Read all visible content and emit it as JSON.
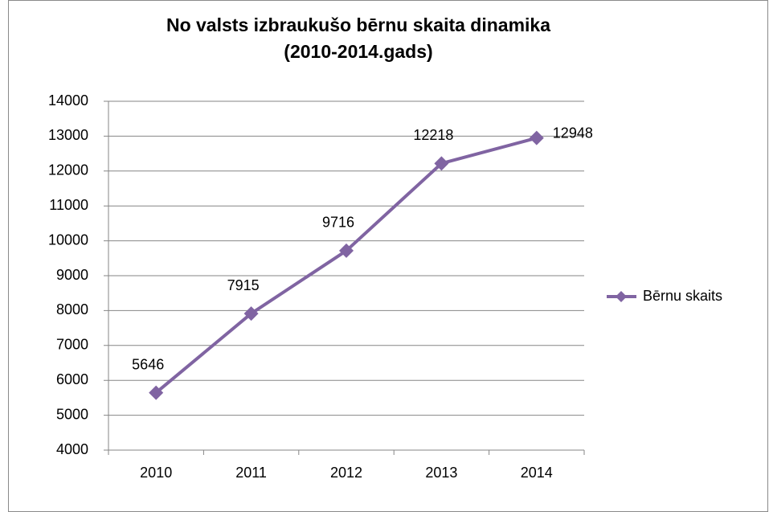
{
  "chart_data": {
    "type": "line",
    "title": [
      "No valsts izbraukušo bērnu skaita dinamika",
      "(2010-2014.gads)"
    ],
    "categories": [
      "2010",
      "2011",
      "2012",
      "2013",
      "2014"
    ],
    "series": [
      {
        "name": "Bērnu skaits",
        "color": "#8064a2",
        "values": [
          5646,
          7915,
          9716,
          12218,
          12948
        ]
      }
    ],
    "ylim": [
      4000,
      14000
    ],
    "yticks": [
      4000,
      5000,
      6000,
      7000,
      8000,
      9000,
      10000,
      11000,
      12000,
      13000,
      14000
    ],
    "grid": true,
    "legend": "right",
    "data_labels": true
  }
}
